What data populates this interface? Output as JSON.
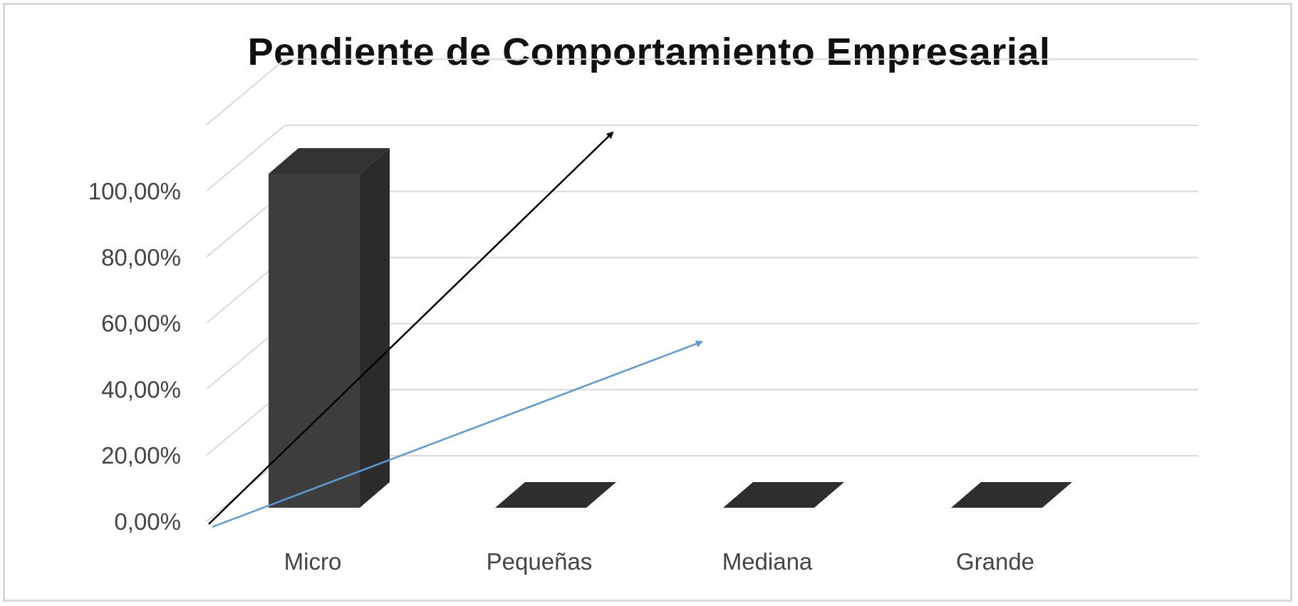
{
  "chart_data": {
    "type": "bar",
    "title": "Pendiente de Comportamiento Empresarial",
    "categories": [
      "Micro",
      "Pequeñas",
      "Mediana",
      "Grande"
    ],
    "values": [
      100,
      0,
      0,
      0
    ],
    "ylim": [
      0,
      100
    ],
    "yticks": [
      "0,00%",
      "20,00%",
      "40,00%",
      "60,00%",
      "80,00%",
      "100,00%"
    ],
    "grid": true,
    "legend": "none",
    "bar_color": "#3d3d3d",
    "arrow_colors": [
      "#000000",
      "#5b9bd5"
    ]
  }
}
